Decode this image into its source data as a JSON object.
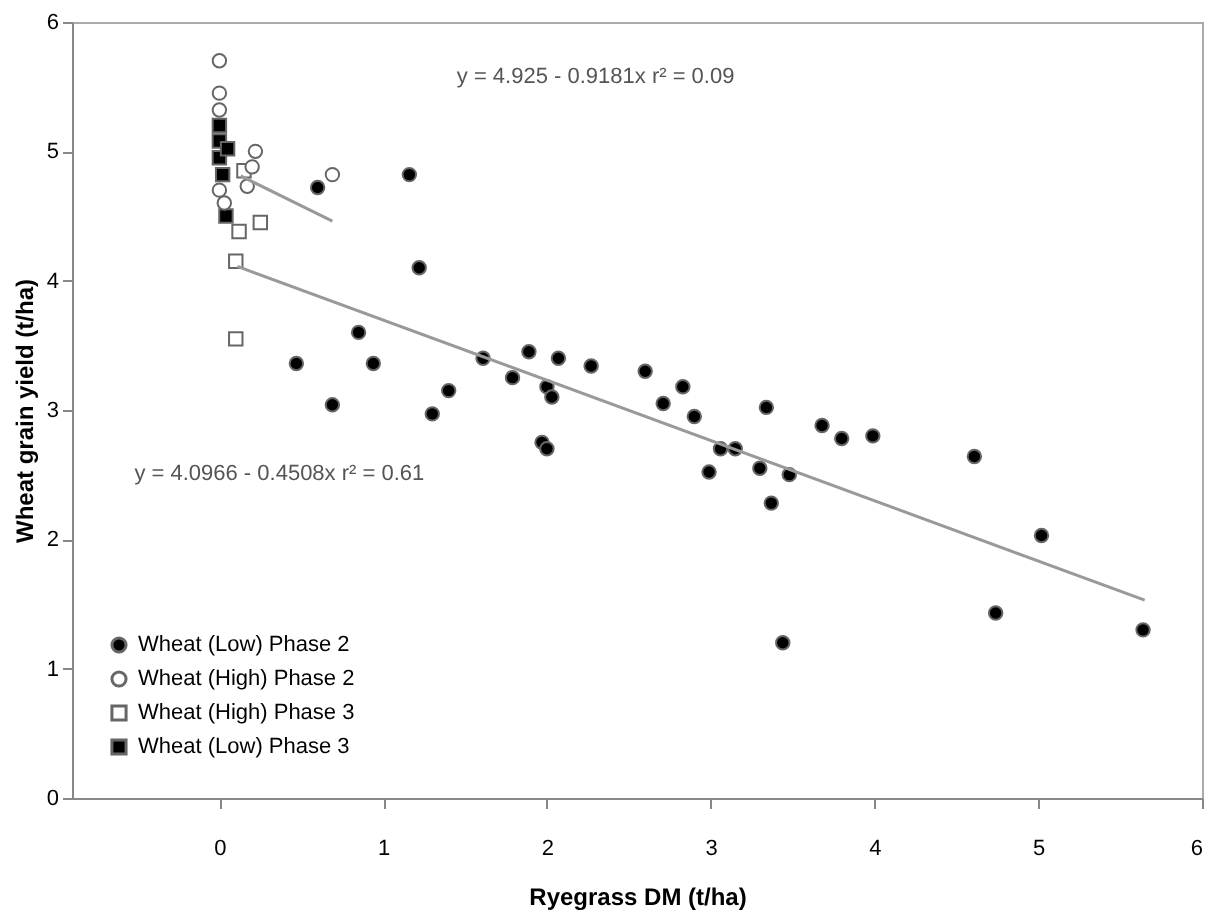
{
  "chart_data": {
    "type": "scatter",
    "xlabel": "Ryegrass DM (t/ha)",
    "ylabel": "Wheat grain yield (t/ha)",
    "xlim": [
      -0.9,
      6
    ],
    "xticks": [
      0,
      1,
      2,
      3,
      4,
      5,
      6
    ],
    "ylim": [
      0,
      6
    ],
    "yticks": [
      0,
      1,
      2,
      3,
      4,
      5,
      6
    ],
    "grid": false,
    "legend": "bottom left",
    "series": [
      {
        "name": "Wheat (Low) Phase 2",
        "color": "#000000",
        "marker": "circle",
        "x": [
          1.16,
          1.22,
          0.85,
          0.47,
          0.94,
          0.69,
          1.3,
          1.4,
          1.61,
          1.89,
          2.07,
          1.79,
          2.0,
          2.03,
          1.97,
          2.0,
          0.6,
          2.27,
          2.6,
          2.83,
          2.71,
          2.9,
          3.34,
          3.68,
          3.8,
          3.99,
          3.06,
          3.15,
          2.99,
          3.3,
          3.48,
          3.37,
          3.44,
          4.61,
          5.02,
          4.74,
          5.64
        ],
        "values": [
          4.82,
          4.1,
          3.6,
          3.36,
          3.36,
          3.04,
          2.97,
          3.15,
          3.4,
          3.45,
          3.4,
          3.25,
          3.18,
          3.1,
          2.75,
          2.7,
          4.72,
          3.34,
          3.3,
          3.18,
          3.05,
          2.95,
          3.02,
          2.88,
          2.78,
          2.8,
          2.7,
          2.7,
          2.52,
          2.55,
          2.5,
          2.28,
          1.2,
          2.64,
          2.03,
          1.43,
          1.3
        ]
      },
      {
        "name": "Wheat (High) Phase 2",
        "color": "#ffffff",
        "marker": "circle",
        "x": [
          0,
          0,
          0,
          0,
          0.22,
          0.2,
          0.69,
          0.17,
          0.03
        ],
        "values": [
          5.7,
          5.45,
          5.32,
          4.7,
          5.0,
          4.88,
          4.82,
          4.73,
          4.6
        ]
      },
      {
        "name": "Wheat (High) Phase 3",
        "color": "#ffffff",
        "marker": "square",
        "x": [
          0.1,
          0.1,
          0.25,
          0.12,
          0.15
        ],
        "values": [
          4.15,
          3.55,
          4.45,
          4.38,
          4.85
        ]
      },
      {
        "name": "Wheat (Low) Phase 3",
        "color": "#000000",
        "marker": "square",
        "x": [
          0,
          0,
          0,
          0.04,
          0.02,
          0.05
        ],
        "values": [
          5.2,
          5.08,
          4.95,
          4.5,
          4.82,
          5.02
        ]
      },
      {
        "type": "line",
        "color": "#999999",
        "x": [
          0.13,
          0.69
        ],
        "values": [
          4.81,
          4.46
        ]
      },
      {
        "type": "line",
        "color": "#999999",
        "x": [
          0.11,
          5.65
        ],
        "values": [
          4.11,
          1.53
        ]
      }
    ],
    "annotations": [
      "y = 4.925 - 0.9181x   r² = 0.09",
      "y = 4.0966 - 0.4508x   r² = 0.61"
    ]
  }
}
